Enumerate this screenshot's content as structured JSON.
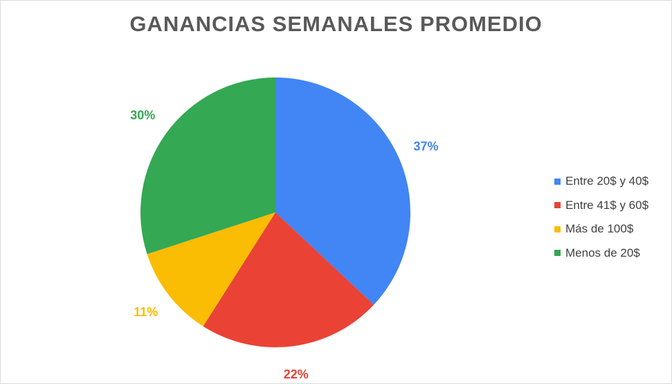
{
  "chart_data": {
    "type": "pie",
    "title": "GANANCIAS SEMANALES PROMEDIO",
    "categories": [
      "Entre 20$ y 40$",
      "Entre 41$ y 60$",
      "Más de 100$",
      "Menos de 20$"
    ],
    "values": [
      37,
      22,
      11,
      30
    ],
    "data_labels": [
      "37%",
      "22%",
      "11%",
      "30%"
    ],
    "colors": [
      "#4285f4",
      "#ea4335",
      "#fbbc04",
      "#34a853"
    ],
    "legend_position": "right"
  }
}
